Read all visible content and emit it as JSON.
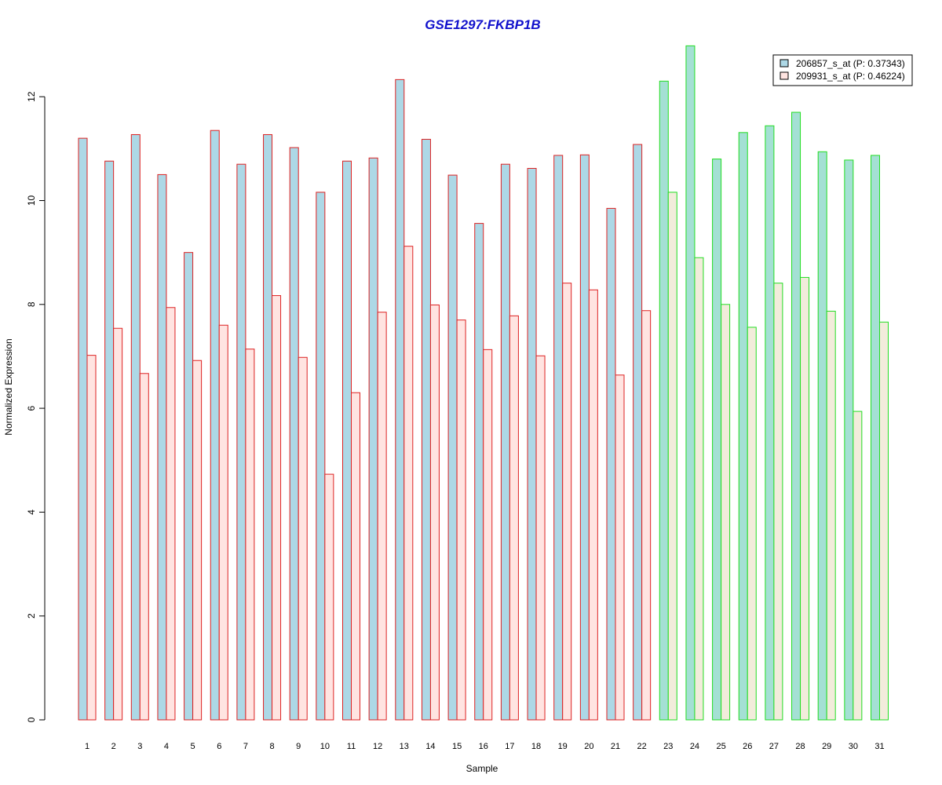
{
  "chart_data": {
    "type": "bar",
    "title": "GSE1297:FKBP1B",
    "xlabel": "Sample",
    "ylabel": "Normalized Expression",
    "ylim": [
      0,
      13
    ],
    "yticks": [
      0,
      2,
      4,
      6,
      8,
      10,
      12
    ],
    "categories": [
      "1",
      "2",
      "3",
      "4",
      "5",
      "6",
      "7",
      "8",
      "9",
      "10",
      "11",
      "12",
      "13",
      "14",
      "15",
      "16",
      "17",
      "18",
      "19",
      "20",
      "21",
      "22",
      "23",
      "24",
      "25",
      "26",
      "27",
      "28",
      "29",
      "30",
      "31"
    ],
    "groups": [
      {
        "count": 22,
        "border_color": "#dd2222"
      },
      {
        "count": 9,
        "border_color": "#22dd22"
      }
    ],
    "series": [
      {
        "name": "206857_s_at (P: 0.37343)",
        "group_fills": [
          "#add8e6",
          "#a4e0d4"
        ],
        "values": [
          11.2,
          10.76,
          11.27,
          10.5,
          9.0,
          11.35,
          10.7,
          11.27,
          11.02,
          10.16,
          10.76,
          10.82,
          12.33,
          11.18,
          10.49,
          9.56,
          10.7,
          10.62,
          10.87,
          10.88,
          9.85,
          11.08,
          12.3,
          12.98,
          10.8,
          11.31,
          11.44,
          11.7,
          10.94,
          10.78,
          10.87
        ]
      },
      {
        "name": "209931_s_at (P: 0.46224)",
        "group_fills": [
          "#ffe4e1",
          "#f2ecdb"
        ],
        "values": [
          7.02,
          7.54,
          6.67,
          7.94,
          6.92,
          7.6,
          7.14,
          8.17,
          6.98,
          4.73,
          6.3,
          7.85,
          9.12,
          7.99,
          7.7,
          7.13,
          7.78,
          7.01,
          8.41,
          8.28,
          6.64,
          7.88,
          10.16,
          8.9,
          8.0,
          7.56,
          8.41,
          8.52,
          7.87,
          5.94,
          7.66
        ]
      }
    ],
    "legend": {
      "placement": "top-right",
      "swatch_fills": [
        "#add8e6",
        "#ffe4e1"
      ]
    },
    "title_color": "#1111cc",
    "grid": false
  }
}
